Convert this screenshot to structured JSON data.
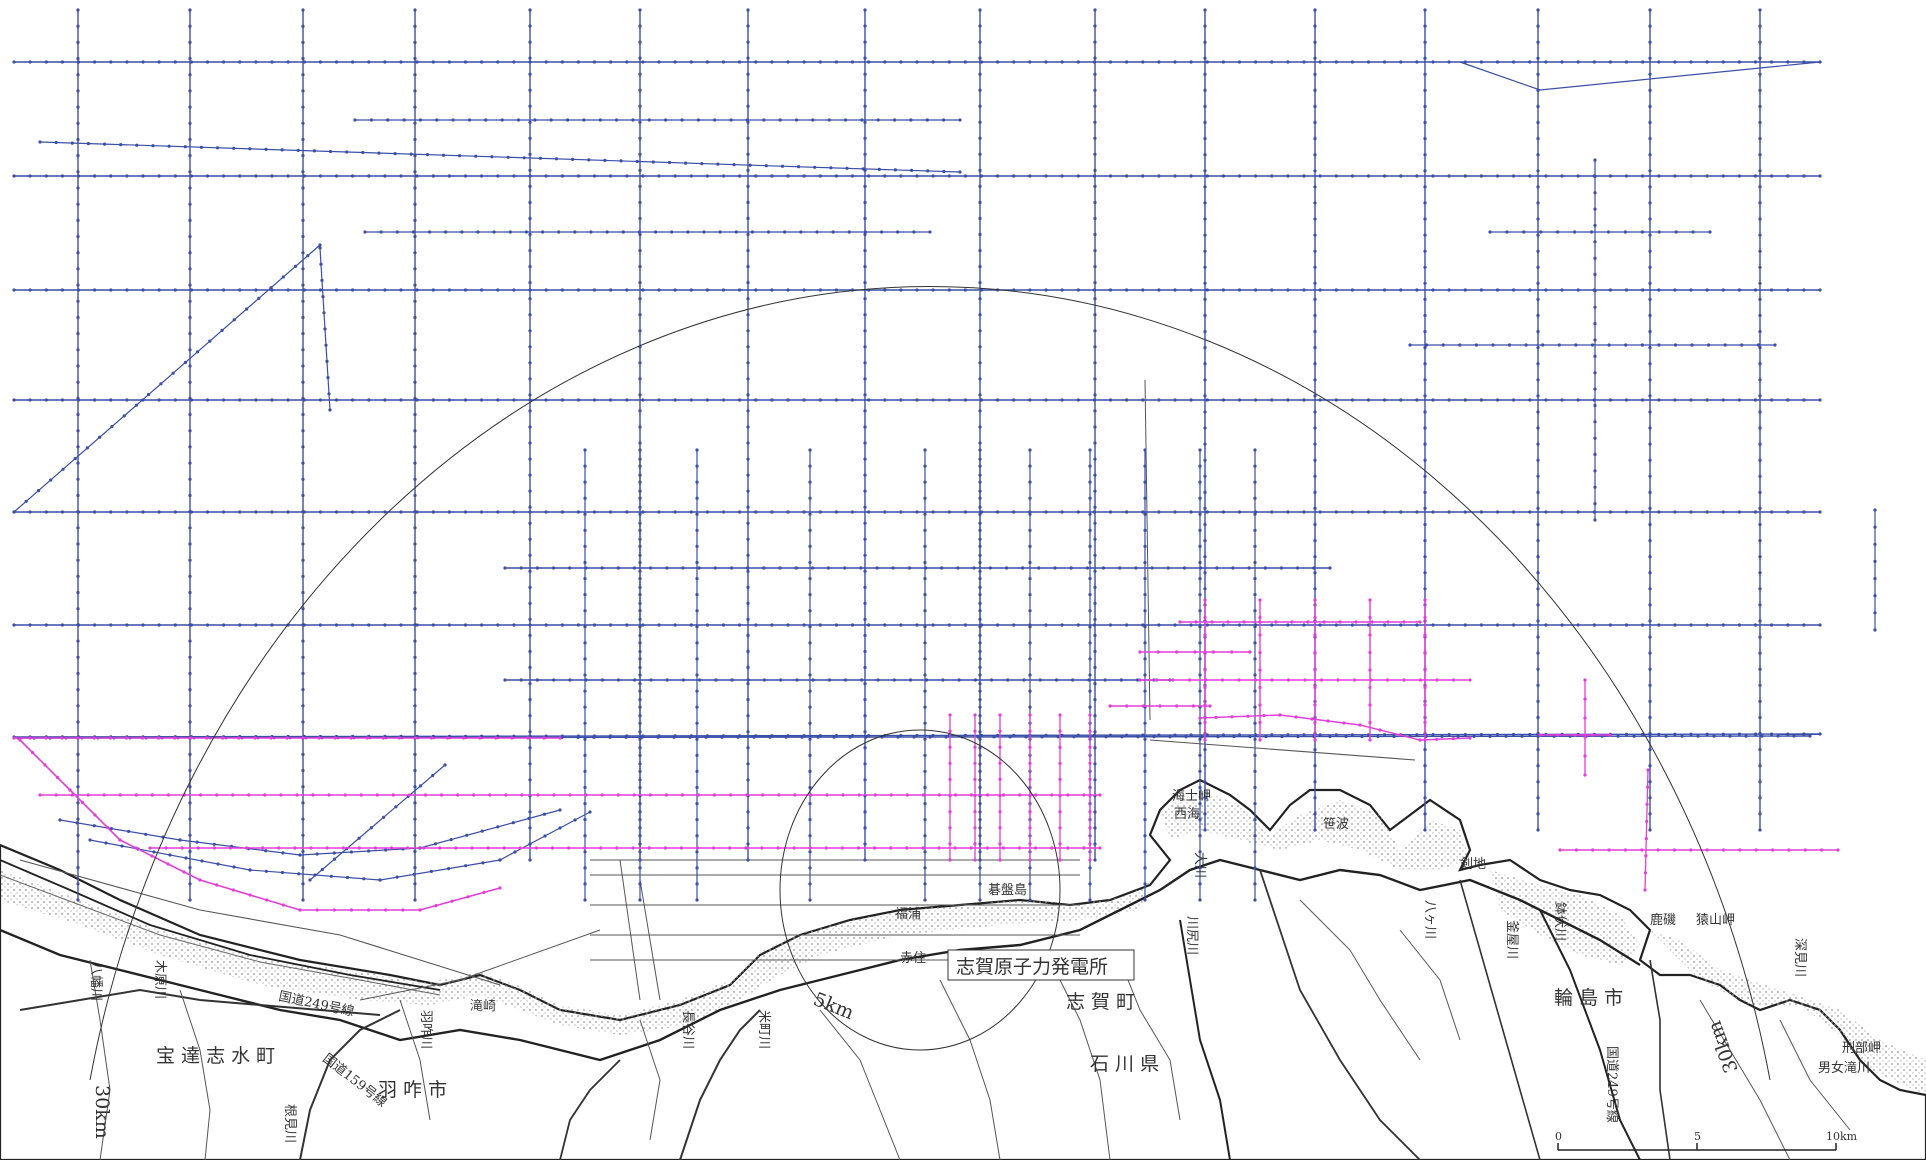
{
  "colors": {
    "survey_blue": "#3b4fa6",
    "survey_magenta": "#e33fd8",
    "survey_gray": "#555555",
    "land_hatch": "#cfcfcf",
    "coast": "#222222",
    "river": "#555555"
  },
  "radius_labels": {
    "r30_left": "30km",
    "r30_right": "30km",
    "r5": "5km"
  },
  "place_labels": {
    "power_plant": "志賀原子力発電所",
    "kaishi_misaki": "海士岬",
    "nishiumi": "西海",
    "sasanami": "笹波",
    "tsurugiji": "剣地",
    "kashima": "鹿磯",
    "saruyama_misaki": "猿山岬",
    "gobanjima": "碁盤島",
    "akazumi": "赤住",
    "fukura": "福浦",
    "takizaki": "滝崎",
    "shika_town": "志 賀 町",
    "ishikawa_pref": "石 川 県",
    "wajima_city": "輪 島 市",
    "hakui_city": "羽 咋 市",
    "hodatsushimizu_town": "宝 達 志 水 町",
    "keibu_misaki": "刑部岬",
    "route249": "国道249号線",
    "route159": "国道159号線",
    "route249_north": "国道249号線",
    "river_hamaya": "八幡川",
    "river_fukami": "深見川",
    "river_kiyama": "木原川",
    "river_haku": "羽咋川",
    "river_nemi": "根見川",
    "river_nagatani": "長谷川",
    "river_otogawa": "米町川",
    "river_kawada": "川尻川",
    "river_ogawa": "大川",
    "river_yasu": "八ヶ川",
    "river_sato": "釜屋川",
    "river_hachi": "鉢伏川",
    "river_shiro": "男女滝川"
  },
  "scale_bar": {
    "tick0": "0",
    "tick5": "5",
    "tick10": "10km"
  }
}
